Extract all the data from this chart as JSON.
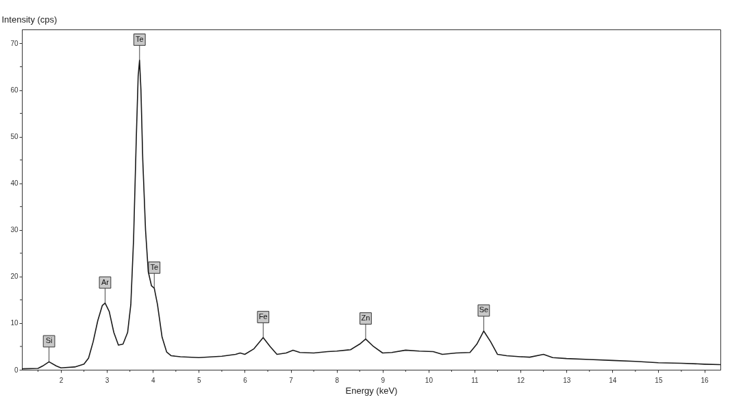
{
  "chart_data": {
    "type": "line",
    "xlabel": "Energy (keV)",
    "ylabel": "Intensity (cps)",
    "xlim": [
      1.15,
      16.35
    ],
    "ylim": [
      0,
      73
    ],
    "xticks": [
      {
        "value": 1.5,
        "label": null
      },
      2,
      {
        "value": 2.5,
        "label": null
      },
      3,
      {
        "value": 3.5,
        "label": null
      },
      4,
      {
        "value": 4.5,
        "label": null
      },
      5,
      {
        "value": 5.5,
        "label": null
      },
      6,
      {
        "value": 6.5,
        "label": null
      },
      7,
      {
        "value": 7.5,
        "label": null
      },
      8,
      {
        "value": 8.5,
        "label": null
      },
      9,
      {
        "value": 9.5,
        "label": null
      },
      10,
      {
        "value": 10.5,
        "label": null
      },
      11,
      {
        "value": 11.5,
        "label": null
      },
      12,
      {
        "value": 12.5,
        "label": null
      },
      13,
      {
        "value": 13.5,
        "label": null
      },
      14,
      {
        "value": 14.5,
        "label": null
      },
      15,
      {
        "value": 15.5,
        "label": null
      },
      16
    ],
    "yticks": [
      0,
      {
        "value": 5,
        "label": null
      },
      10,
      {
        "value": 15,
        "label": null
      },
      20,
      {
        "value": 25,
        "label": null
      },
      30,
      {
        "value": 35,
        "label": null
      },
      40,
      {
        "value": 45,
        "label": null
      },
      50,
      {
        "value": 55,
        "label": null
      },
      60,
      {
        "value": 65,
        "label": null
      },
      70
    ],
    "grid": false,
    "legend": false,
    "marker": "none",
    "line_style": "solid",
    "series": [
      {
        "color": "#1a1a1a",
        "x": [
          1.15,
          1.5,
          1.6,
          1.74,
          1.9,
          2.0,
          2.3,
          2.5,
          2.6,
          2.7,
          2.8,
          2.9,
          2.96,
          3.05,
          3.15,
          3.25,
          3.35,
          3.45,
          3.52,
          3.58,
          3.64,
          3.68,
          3.71,
          3.74,
          3.78,
          3.84,
          3.9,
          3.97,
          4.03,
          4.1,
          4.2,
          4.3,
          4.4,
          4.6,
          5.0,
          5.5,
          5.8,
          5.9,
          6.0,
          6.2,
          6.4,
          6.55,
          6.7,
          6.9,
          7.05,
          7.2,
          7.5,
          7.8,
          8.0,
          8.3,
          8.5,
          8.63,
          8.8,
          9.0,
          9.2,
          9.5,
          9.8,
          10.1,
          10.3,
          10.6,
          10.9,
          11.05,
          11.2,
          11.35,
          11.5,
          11.7,
          12.0,
          12.2,
          12.5,
          12.7,
          13.0,
          13.5,
          14.0,
          14.5,
          15.0,
          15.5,
          16.0,
          16.35
        ],
        "values": [
          0.2,
          0.3,
          0.8,
          1.7,
          0.8,
          0.4,
          0.6,
          1.2,
          2.5,
          6,
          10.5,
          13.8,
          14.3,
          12.5,
          8,
          5.3,
          5.5,
          8,
          14,
          28,
          50,
          63,
          66.4,
          60,
          45,
          30,
          21,
          18,
          17.5,
          14,
          7,
          3.8,
          3,
          2.8,
          2.6,
          2.9,
          3.3,
          3.6,
          3.3,
          4.5,
          6.9,
          5,
          3.3,
          3.6,
          4.2,
          3.7,
          3.6,
          3.9,
          4.0,
          4.3,
          5.5,
          6.6,
          5,
          3.6,
          3.7,
          4.2,
          4.0,
          3.9,
          3.3,
          3.6,
          3.7,
          5.5,
          8.3,
          6,
          3.3,
          3.0,
          2.8,
          2.7,
          3.3,
          2.6,
          2.4,
          2.2,
          2.0,
          1.8,
          1.5,
          1.4,
          1.2,
          1.1
        ]
      }
    ],
    "annotations": [
      {
        "text": "Si",
        "x": 1.74,
        "y": 1.7
      },
      {
        "text": "Ar",
        "x": 2.96,
        "y": 14.3
      },
      {
        "text": "Te",
        "x": 3.71,
        "y": 66.4
      },
      {
        "text": "Te",
        "x": 4.03,
        "y": 17.5
      },
      {
        "text": "Fe",
        "x": 6.4,
        "y": 6.9
      },
      {
        "text": "Zn",
        "x": 8.63,
        "y": 6.6
      },
      {
        "text": "Se",
        "x": 11.2,
        "y": 8.3
      }
    ]
  }
}
